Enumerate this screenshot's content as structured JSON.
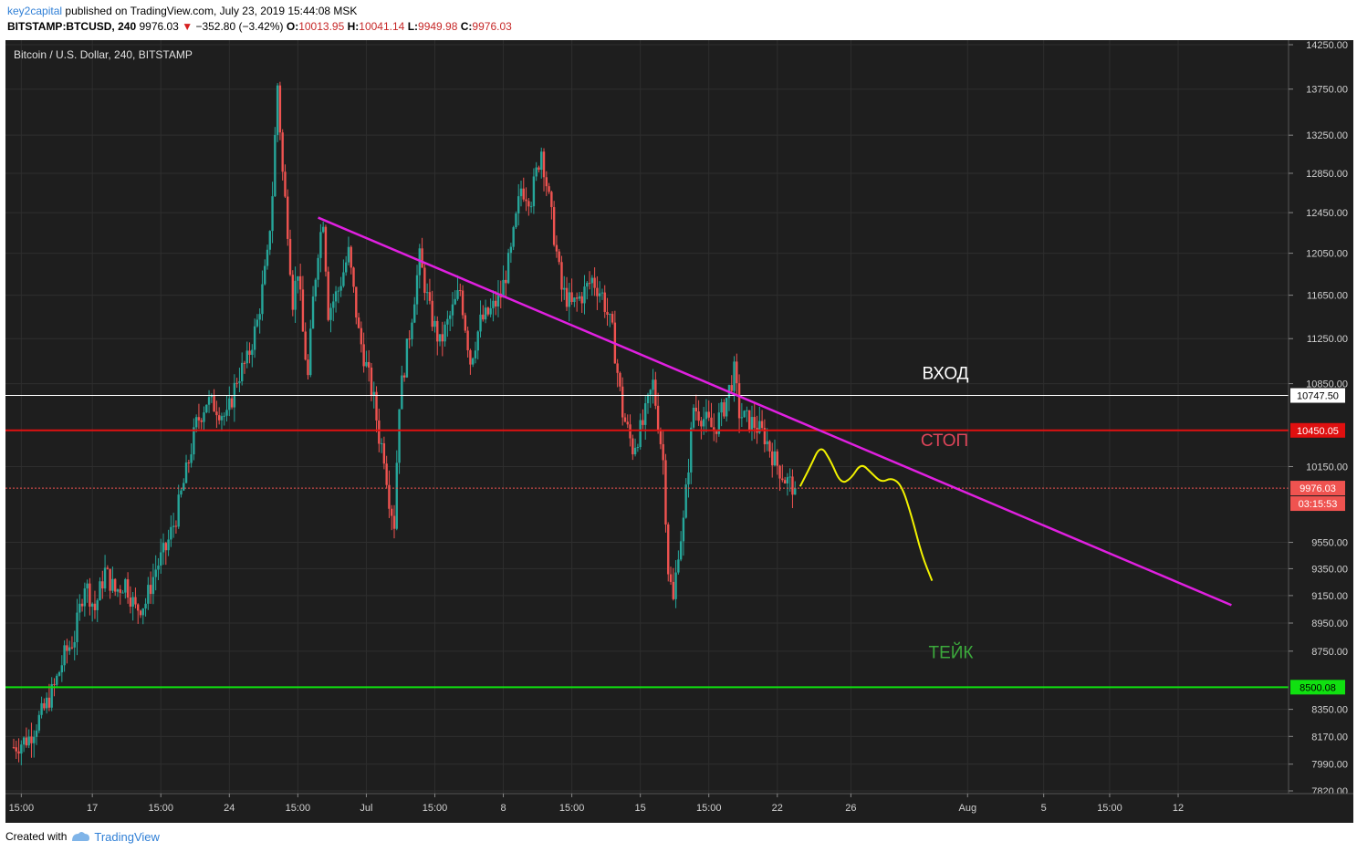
{
  "header": {
    "author": "key2capital",
    "published": "published on TradingView.com, July 23, 2019 15:44:08 MSK",
    "symbol": "BITSTAMP:BTCUSD, 240",
    "last": "9976.03",
    "arrow": "▼",
    "change": "−352.80 (−3.42%)",
    "o_label": "O:",
    "o_value": "10013.95",
    "h_label": "H:",
    "h_value": "10041.14",
    "l_label": "L:",
    "l_value": "9949.98",
    "c_label": "C:",
    "c_value": "9976.03"
  },
  "footer": {
    "created_with": "Created with",
    "brand": "TradingView"
  },
  "colors": {
    "background": "#1e1e1e",
    "grid": "#2e2e2e",
    "up": "#26a69a",
    "down": "#ef5350",
    "trendline": "#e020e0",
    "projection": "#f2f200",
    "entry": "#ffffff",
    "stop": "#e01010",
    "take": "#10e010"
  },
  "chart_data": {
    "type": "candlestick",
    "title": "Bitcoin / U.S. Dollar, 240, BITSTAMP",
    "scale": "log",
    "ylim": [
      7820,
      14250
    ],
    "y_ticks": [
      14250.0,
      13750.0,
      13250.0,
      12850.0,
      12450.0,
      12050.0,
      11650.0,
      11250.0,
      10850.0,
      10150.0,
      9550.0,
      9350.0,
      9150.0,
      8950.0,
      8750.0,
      8350.0,
      8170.0,
      7990.0,
      7820.0
    ],
    "x_ticks": [
      "15:00",
      "17",
      "15:00",
      "24",
      "15:00",
      "Jul",
      "15:00",
      "8",
      "15:00",
      "15",
      "15:00",
      "22",
      "26",
      "Aug",
      "5",
      "15:00",
      "12"
    ],
    "x_tick_index": [
      1.5,
      15.5,
      29,
      42.5,
      56,
      69.5,
      83,
      96.5,
      110,
      123.5,
      137,
      150.5,
      165,
      188,
      203,
      216,
      229.5
    ],
    "x_range": [
      0,
      240
    ],
    "price_path": [
      [
        0,
        8100
      ],
      [
        3,
        8160
      ],
      [
        6,
        8350
      ],
      [
        8,
        8500
      ],
      [
        10,
        8720
      ],
      [
        12,
        8850
      ],
      [
        14,
        9250
      ],
      [
        16,
        9050
      ],
      [
        18,
        9330
      ],
      [
        20,
        9180
      ],
      [
        22,
        9250
      ],
      [
        24,
        9050
      ],
      [
        26,
        9100
      ],
      [
        28,
        9350
      ],
      [
        30,
        9500
      ],
      [
        32,
        9750
      ],
      [
        34,
        10100
      ],
      [
        36,
        10500
      ],
      [
        38,
        10700
      ],
      [
        40,
        10650
      ],
      [
        42,
        10550
      ],
      [
        44,
        10900
      ],
      [
        46,
        11050
      ],
      [
        48,
        11400
      ],
      [
        50,
        12000
      ],
      [
        51,
        12650
      ],
      [
        52,
        13800
      ],
      [
        53,
        12850
      ],
      [
        54,
        12300
      ],
      [
        55,
        11600
      ],
      [
        56,
        11900
      ],
      [
        57,
        11300
      ],
      [
        58,
        10900
      ],
      [
        59,
        11600
      ],
      [
        60,
        12100
      ],
      [
        61,
        12400
      ],
      [
        62,
        11500
      ],
      [
        64,
        11700
      ],
      [
        66,
        12050
      ],
      [
        68,
        11300
      ],
      [
        70,
        10900
      ],
      [
        71,
        10700
      ],
      [
        72,
        10400
      ],
      [
        73,
        10250
      ],
      [
        74,
        9900
      ],
      [
        75,
        9700
      ],
      [
        76,
        10700
      ],
      [
        78,
        11300
      ],
      [
        80,
        12000
      ],
      [
        82,
        11500
      ],
      [
        84,
        11200
      ],
      [
        86,
        11450
      ],
      [
        88,
        11700
      ],
      [
        90,
        11050
      ],
      [
        92,
        11400
      ],
      [
        94,
        11500
      ],
      [
        96,
        11650
      ],
      [
        98,
        12050
      ],
      [
        100,
        12700
      ],
      [
        102,
        12600
      ],
      [
        104,
        13100
      ],
      [
        106,
        12400
      ],
      [
        108,
        11700
      ],
      [
        110,
        11550
      ],
      [
        112,
        11650
      ],
      [
        114,
        11800
      ],
      [
        116,
        11650
      ],
      [
        118,
        11300
      ],
      [
        120,
        10600
      ],
      [
        122,
        10300
      ],
      [
        124,
        10500
      ],
      [
        126,
        10850
      ],
      [
        128,
        10200
      ],
      [
        129,
        9350
      ],
      [
        130,
        9100
      ],
      [
        131,
        9500
      ],
      [
        132,
        9700
      ],
      [
        134,
        10650
      ],
      [
        136,
        10550
      ],
      [
        138,
        10450
      ],
      [
        140,
        10650
      ],
      [
        142,
        10950
      ],
      [
        143,
        10600
      ],
      [
        144,
        10550
      ],
      [
        146,
        10500
      ],
      [
        148,
        10400
      ],
      [
        150,
        10200
      ],
      [
        152,
        10050
      ],
      [
        154,
        9976
      ]
    ],
    "trendline": {
      "x1": 60,
      "y1": 12400,
      "x2": 240,
      "y2": 9080
    },
    "projection": [
      [
        155,
        9990
      ],
      [
        157,
        10150
      ],
      [
        159,
        10330
      ],
      [
        161,
        10200
      ],
      [
        163,
        10010
      ],
      [
        165,
        10050
      ],
      [
        167,
        10180
      ],
      [
        169,
        10100
      ],
      [
        171,
        10020
      ],
      [
        173,
        10060
      ],
      [
        175,
        10000
      ],
      [
        177,
        9750
      ],
      [
        179,
        9450
      ],
      [
        181,
        9260
      ]
    ],
    "levels": [
      {
        "name": "entry",
        "label": "ВХОД",
        "value": 10747.5,
        "badge": "10747.50"
      },
      {
        "name": "stop",
        "label": "СТОП",
        "value": 10450.05,
        "badge": "10450.05"
      },
      {
        "name": "take",
        "label": "ТЕЙК",
        "value": 8500.08,
        "badge": "8500.08"
      }
    ],
    "last_price": {
      "value": 9976.03,
      "badge": "9976.03",
      "countdown": "03:15:53"
    },
    "grid": true
  }
}
